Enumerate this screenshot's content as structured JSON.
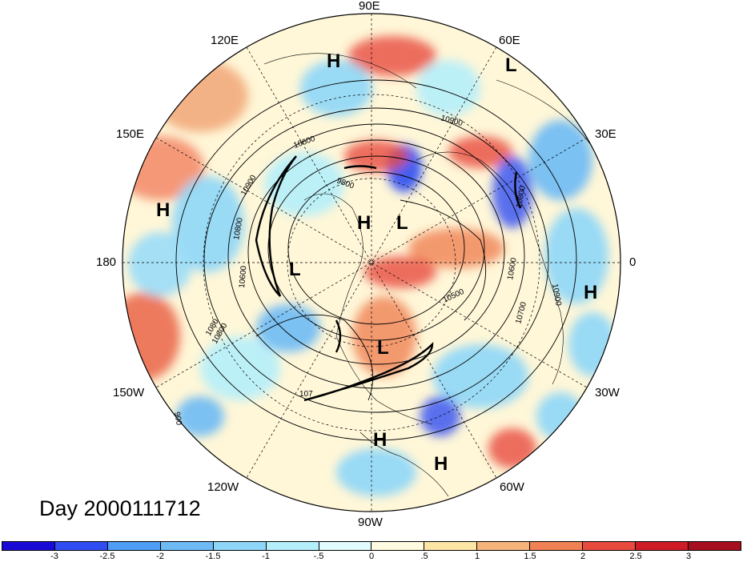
{
  "day_label": "Day 2000111712",
  "longitude_labels": {
    "e90": "90E",
    "e60": "60E",
    "e30": "30E",
    "lon0": "0",
    "w30": "30W",
    "w60": "60W",
    "w90": "90W",
    "w120": "120W",
    "w150": "150W",
    "lon180": "180",
    "e150": "150E",
    "e120": "120E"
  },
  "pressure_markers": [
    {
      "type": "H"
    },
    {
      "type": "L"
    },
    {
      "type": "H"
    },
    {
      "type": "L"
    },
    {
      "type": "H"
    },
    {
      "type": "L"
    },
    {
      "type": "H"
    },
    {
      "type": "L"
    },
    {
      "type": "H"
    },
    {
      "type": "H"
    }
  ],
  "contour_labels": [
    "10900",
    "10600",
    "9800",
    "10900",
    "10800",
    "10600",
    "10500",
    "10600",
    "10700",
    "10900",
    "10800",
    "1080",
    "10800",
    "107",
    "900"
  ],
  "colorbar": {
    "colors": [
      "#1a0ad6",
      "#2f4df2",
      "#4f9df4",
      "#6dbaf5",
      "#8ed6f8",
      "#b5eefb",
      "#e2fbfe",
      "#fffbe0",
      "#fde5a6",
      "#f7b47a",
      "#f08154",
      "#e84a3d",
      "#cd1c26",
      "#a50f20"
    ],
    "tick_labels": [
      "-3",
      "-2.5",
      "-2",
      "-1.5",
      "-1",
      "-.5",
      "0",
      ".5",
      "1",
      "1.5",
      "2",
      "2.5",
      "3"
    ]
  }
}
